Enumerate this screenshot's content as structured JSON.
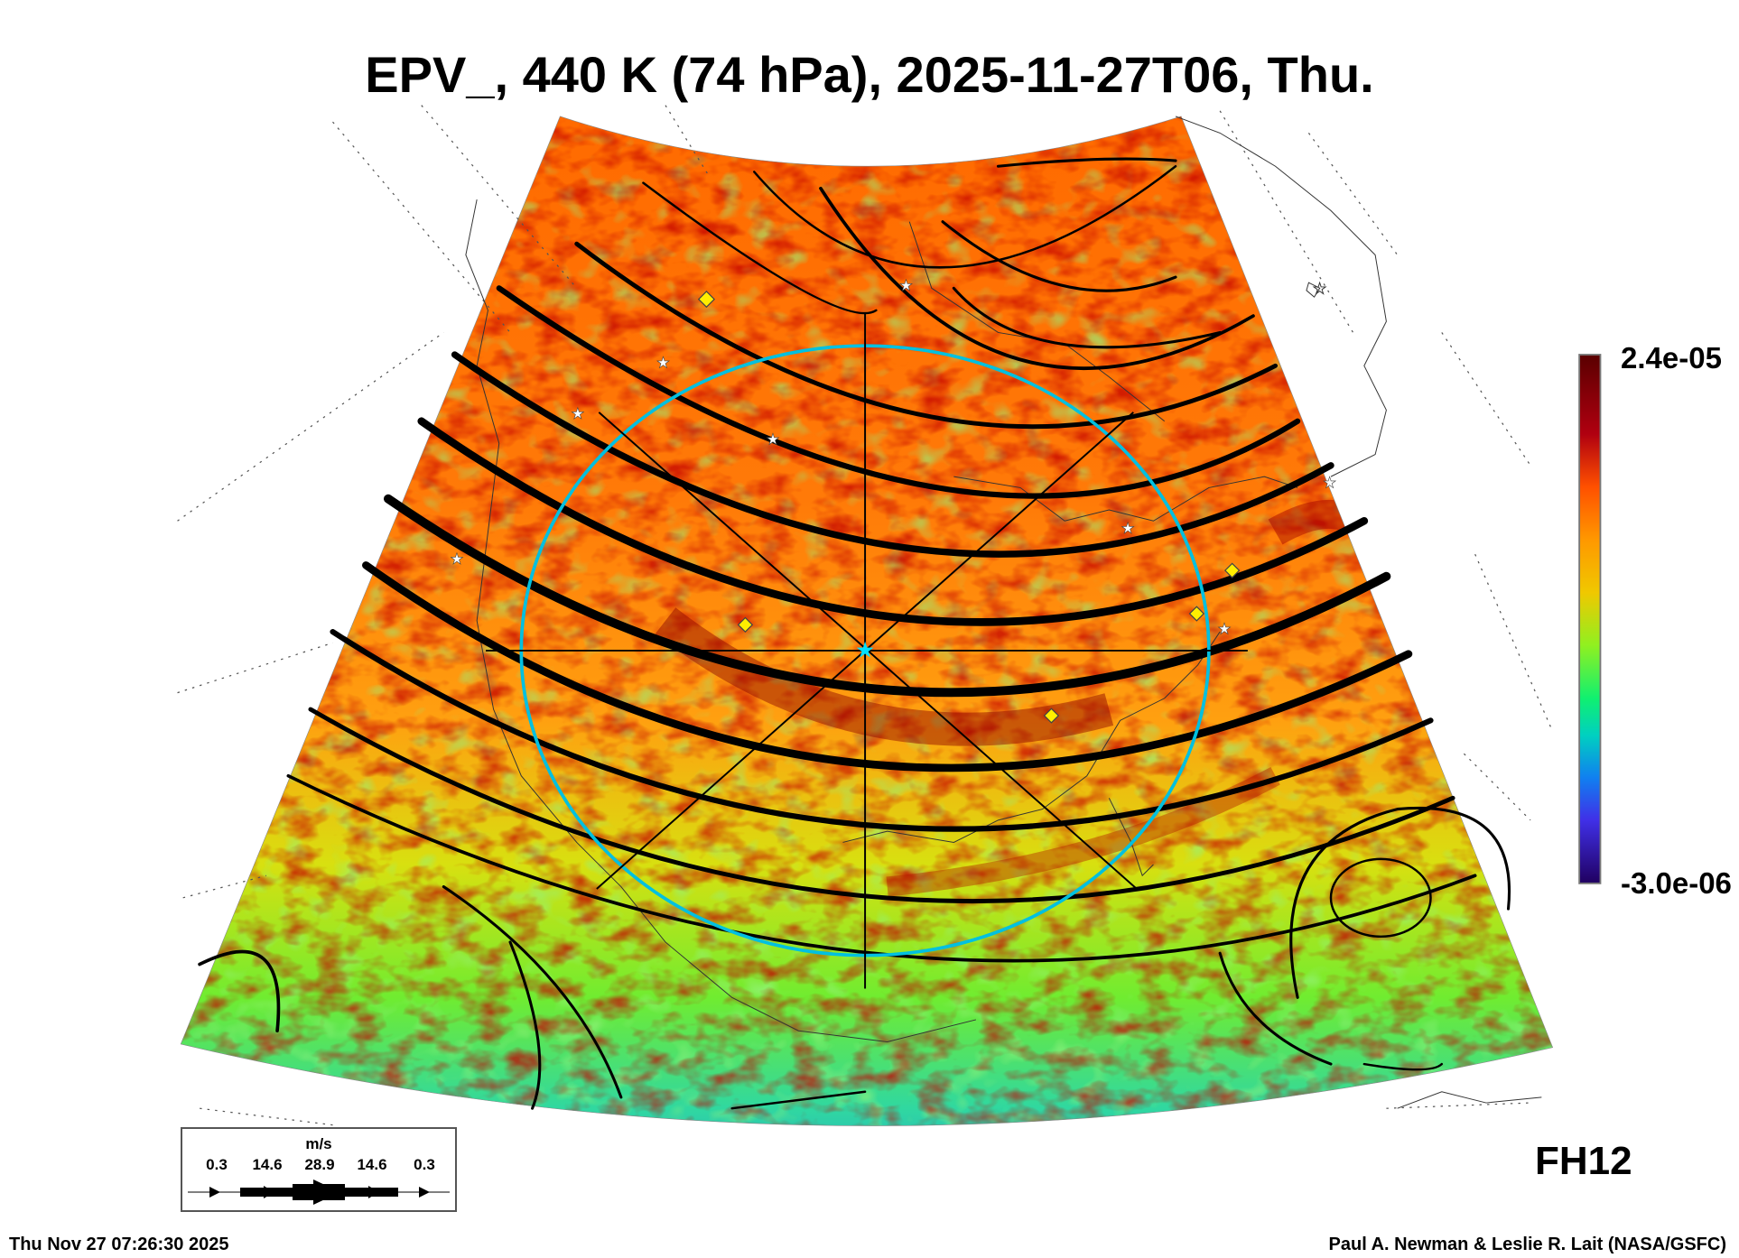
{
  "title": "EPV_, 440 K (74 hPa), 2025-11-27T06, Thu.",
  "colorbar": {
    "max_label": "2.4e-05",
    "min_label": "-3.0e-06",
    "colors": [
      "#5a0000",
      "#a80010",
      "#e02800",
      "#ff5a00",
      "#ffa000",
      "#f0c800",
      "#c8e000",
      "#80f020",
      "#20f060",
      "#00d8c0",
      "#10a0e0",
      "#2060ff",
      "#4830e8",
      "#6010c8",
      "#200060"
    ]
  },
  "legend": {
    "unit": "m/s",
    "values": [
      "0.3",
      "14.6",
      "28.9",
      "14.6",
      "0.3"
    ]
  },
  "forecast_hour": "FH12",
  "footer": {
    "timestamp": "Thu Nov 27 07:26:30 2025",
    "credit": "Paul A. Newman & Leslie R. Lait (NASA/GSFC)"
  },
  "colors": {
    "ring": "#00c0e0",
    "marker_diamond": "#ffee00",
    "marker_star": "#ffffff",
    "center_star": "#00e0ff"
  }
}
